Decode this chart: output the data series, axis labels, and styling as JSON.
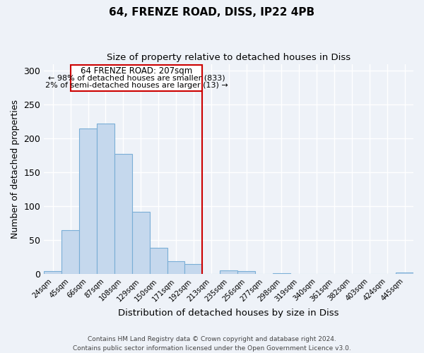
{
  "title_line1": "64, FRENZE ROAD, DISS, IP22 4PB",
  "title_line2": "Size of property relative to detached houses in Diss",
  "xlabel": "Distribution of detached houses by size in Diss",
  "ylabel": "Number of detached properties",
  "bar_labels": [
    "24sqm",
    "45sqm",
    "66sqm",
    "87sqm",
    "108sqm",
    "129sqm",
    "150sqm",
    "171sqm",
    "192sqm",
    "213sqm",
    "235sqm",
    "256sqm",
    "277sqm",
    "298sqm",
    "319sqm",
    "340sqm",
    "361sqm",
    "382sqm",
    "403sqm",
    "424sqm",
    "445sqm"
  ],
  "bar_values": [
    4,
    65,
    215,
    222,
    177,
    92,
    39,
    19,
    15,
    0,
    5,
    4,
    0,
    1,
    0,
    0,
    0,
    0,
    0,
    0,
    2
  ],
  "bar_color": "#c5d8ed",
  "bar_edge_color": "#7aaed6",
  "vline_color": "#cc0000",
  "annotation_line1": "64 FRENZE ROAD: 207sqm",
  "annotation_line2": "← 98% of detached houses are smaller (833)",
  "annotation_line3": "2% of semi-detached houses are larger (13) →",
  "ylim": [
    0,
    310
  ],
  "yticks": [
    0,
    50,
    100,
    150,
    200,
    250,
    300
  ],
  "background_color": "#eef2f8",
  "grid_color": "#ffffff",
  "fig_bg_color": "#eef2f8",
  "footer_text": "Contains HM Land Registry data © Crown copyright and database right 2024.\nContains public sector information licensed under the Open Government Licence v3.0."
}
